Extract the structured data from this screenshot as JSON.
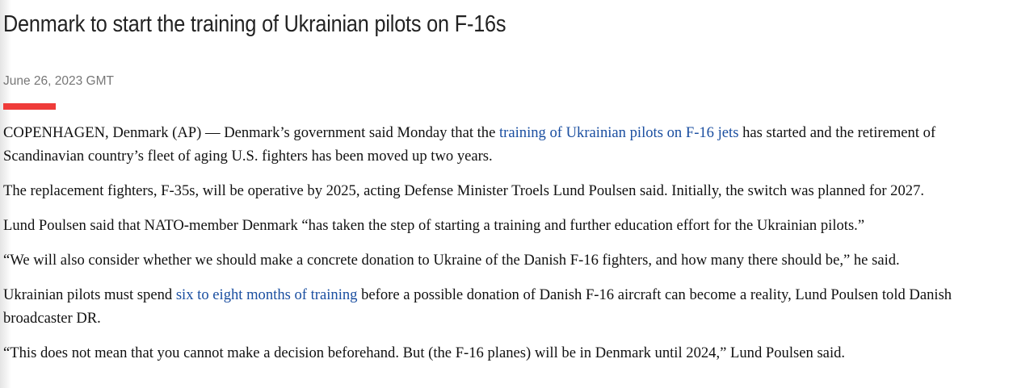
{
  "article": {
    "title": "Denmark to start the training of Ukrainian pilots on F-16s",
    "date": "June 26, 2023 GMT",
    "accent_color": "#ef3b39",
    "link_color": "#1a4ea0",
    "paragraphs": [
      {
        "before": "COPENHAGEN, Denmark (AP) — Denmark’s government said Monday that the ",
        "link": "training of Ukrainian pilots on F-16 jets",
        "after": " has started and the retirement of Scandinavian country’s fleet of aging U.S. fighters has been moved up two years."
      },
      {
        "text": "The replacement fighters, F-35s, will be operative by 2025, acting Defense Minister Troels Lund Poulsen said. Initially, the switch was planned for 2027."
      },
      {
        "text": "Lund Poulsen said that NATO-member Denmark “has taken the step of starting a training and further education effort for the Ukrainian pilots.”"
      },
      {
        "text": "“We will also consider whether we should make a concrete donation to Ukraine of the Danish F-16 fighters, and how many there should be,” he said."
      },
      {
        "before": "Ukrainian pilots must spend ",
        "link": "six to eight months of training",
        "after": " before a possible donation of Danish F-16 aircraft can become a reality, Lund Poulsen told Danish broadcaster DR."
      },
      {
        "text": "“This does not mean that you cannot make a decision beforehand. But (the F-16 planes) will be in Denmark until 2024,” Lund Poulsen said."
      }
    ]
  }
}
